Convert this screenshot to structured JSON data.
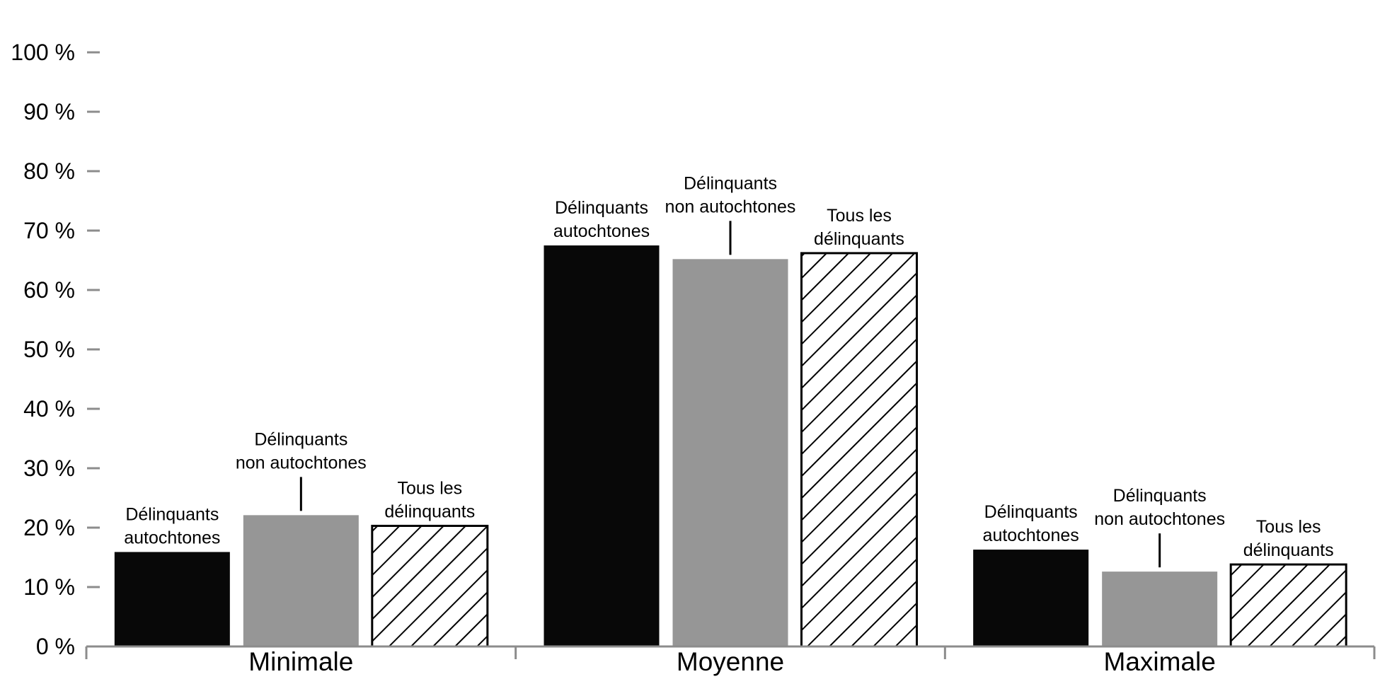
{
  "chart_data": {
    "type": "bar",
    "title": "",
    "xlabel": "",
    "ylabel": "",
    "ylim": [
      0,
      100
    ],
    "y_ticks": [
      "0 %",
      "10 %",
      "20 %",
      "30 %",
      "40 %",
      "50 %",
      "60 %",
      "70 %",
      "80 %",
      "90 %",
      "100 %"
    ],
    "categories": [
      "Minimale",
      "Moyenne",
      "Maximale"
    ],
    "series": [
      {
        "name": "Délinquants autochtones",
        "label_lines": [
          "Délinquants",
          "autochtones"
        ],
        "values": [
          15.9,
          67.5,
          16.3
        ],
        "color": "#080808",
        "pattern": "solid"
      },
      {
        "name": "Délinquants non autochtones",
        "label_lines": [
          "Délinquants",
          "non autochtones"
        ],
        "values": [
          22.1,
          65.2,
          12.6
        ],
        "color": "#969696",
        "pattern": "solid"
      },
      {
        "name": "Tous les délinquants",
        "label_lines": [
          "Tous les",
          "délinquants"
        ],
        "values": [
          20.3,
          66.2,
          13.8
        ],
        "color": "#ffffff",
        "pattern": "hatch"
      }
    ],
    "grid": false,
    "legend": "none"
  }
}
